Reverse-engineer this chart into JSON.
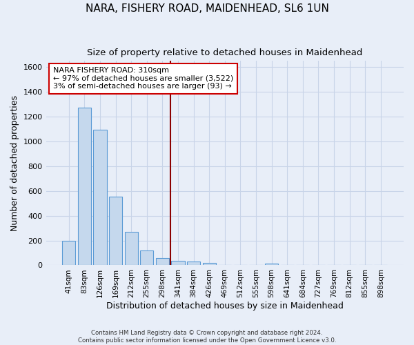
{
  "title": "NARA, FISHERY ROAD, MAIDENHEAD, SL6 1UN",
  "subtitle": "Size of property relative to detached houses in Maidenhead",
  "xlabel": "Distribution of detached houses by size in Maidenhead",
  "ylabel": "Number of detached properties",
  "footer_line1": "Contains HM Land Registry data © Crown copyright and database right 2024.",
  "footer_line2": "Contains public sector information licensed under the Open Government Licence v3.0.",
  "categories": [
    "41sqm",
    "83sqm",
    "126sqm",
    "169sqm",
    "212sqm",
    "255sqm",
    "298sqm",
    "341sqm",
    "384sqm",
    "426sqm",
    "469sqm",
    "512sqm",
    "555sqm",
    "598sqm",
    "641sqm",
    "684sqm",
    "727sqm",
    "769sqm",
    "812sqm",
    "855sqm",
    "898sqm"
  ],
  "bar_values": [
    197,
    1275,
    1097,
    553,
    268,
    118,
    58,
    35,
    28,
    17,
    0,
    0,
    0,
    15,
    0,
    0,
    0,
    0,
    0,
    0,
    0
  ],
  "bar_color": "#c5d8ed",
  "bar_edge_color": "#5b9bd5",
  "grid_color": "#c8d4e8",
  "background_color": "#e8eef8",
  "vline_color": "#8b0000",
  "annotation_line1": "NARA FISHERY ROAD: 310sqm",
  "annotation_line2": "← 97% of detached houses are smaller (3,522)",
  "annotation_line3": "3% of semi-detached houses are larger (93) →",
  "annotation_box_color": "#ffffff",
  "annotation_box_edge": "#cc0000",
  "ylim": [
    0,
    1650
  ],
  "yticks": [
    0,
    200,
    400,
    600,
    800,
    1000,
    1200,
    1400,
    1600
  ],
  "title_fontsize": 11,
  "subtitle_fontsize": 9.5,
  "annotation_fontsize": 8,
  "ylabel_fontsize": 9,
  "xlabel_fontsize": 9,
  "tick_fontsize": 8,
  "xtick_fontsize": 7.5
}
